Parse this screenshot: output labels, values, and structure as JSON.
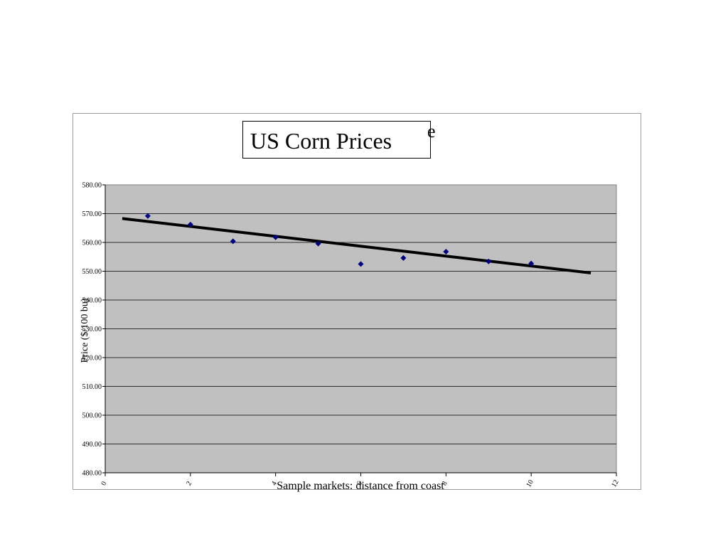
{
  "chart_data": {
    "type": "scatter",
    "title": "US Corn Prices",
    "title_overflow": "e",
    "xlabel": "Sample markets: distance from coast",
    "ylabel": "Price ($/100 bu)",
    "xlim": [
      0,
      12
    ],
    "ylim": [
      480,
      580
    ],
    "x_ticks": [
      0,
      2,
      4,
      6,
      8,
      10,
      12
    ],
    "y_ticks": [
      480,
      490,
      500,
      510,
      520,
      530,
      540,
      550,
      560,
      570,
      580
    ],
    "y_tick_labels": [
      "480.00",
      "490.00",
      "500.00",
      "510.00",
      "520.00",
      "530.00",
      "540.00",
      "550.00",
      "560.00",
      "570.00",
      "580.00"
    ],
    "grid": true,
    "plot_background": "#c0c0c0",
    "marker_color": "#000080",
    "trendline_color": "#000000",
    "series": [
      {
        "x": [
          1,
          2,
          3,
          4,
          5,
          6,
          7,
          8,
          9,
          10
        ],
        "y": [
          569.2,
          566.2,
          560.4,
          561.8,
          559.6,
          552.5,
          554.6,
          556.8,
          553.4,
          552.7
        ]
      }
    ],
    "trendline": {
      "x": [
        0.4,
        11.4
      ],
      "y": [
        568.3,
        549.4
      ]
    }
  }
}
